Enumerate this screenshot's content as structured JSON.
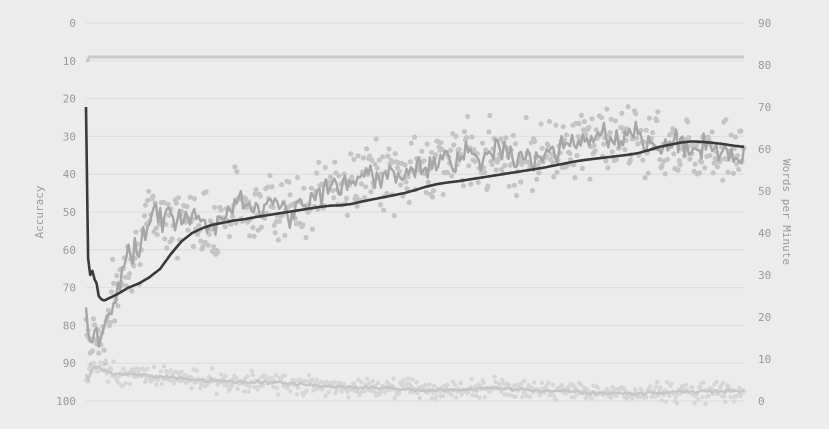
{
  "chart_data": {
    "type": "scatter",
    "title": "",
    "left_axis": {
      "label": "Accuracy",
      "range": [
        0,
        100
      ],
      "inverted": true,
      "ticks": [
        "0",
        "10",
        "20",
        "30",
        "40",
        "50",
        "60",
        "70",
        "80",
        "90",
        "100"
      ]
    },
    "right_axis": {
      "label": "Words per Minute",
      "range": [
        0,
        90
      ],
      "ticks": [
        "90",
        "80",
        "70",
        "60",
        "50",
        "40",
        "30",
        "20",
        "10",
        "0"
      ]
    },
    "grid": true,
    "legend": "none",
    "x_range": [
      0,
      620
    ],
    "series": [
      {
        "axis": "right",
        "style": "scatter+line",
        "color": "#b8b8b8",
        "control_points": [
          [
            0,
            22
          ],
          [
            1,
            18
          ],
          [
            3,
            15
          ],
          [
            5,
            12
          ],
          [
            8,
            18
          ],
          [
            12,
            15
          ],
          [
            18,
            16
          ],
          [
            25,
            24
          ],
          [
            32,
            28
          ],
          [
            38,
            34
          ],
          [
            45,
            36
          ],
          [
            52,
            37
          ],
          [
            58,
            42
          ],
          [
            64,
            45
          ],
          [
            70,
            44
          ],
          [
            78,
            45
          ],
          [
            85,
            42
          ],
          [
            95,
            44
          ],
          [
            105,
            43
          ],
          [
            115,
            41
          ],
          [
            125,
            43
          ],
          [
            135,
            45
          ],
          [
            145,
            48
          ],
          [
            155,
            47
          ],
          [
            165,
            44
          ],
          [
            175,
            48
          ],
          [
            185,
            46
          ],
          [
            195,
            45
          ],
          [
            205,
            47
          ],
          [
            215,
            48
          ],
          [
            225,
            50
          ],
          [
            235,
            52
          ],
          [
            245,
            52
          ],
          [
            255,
            51
          ],
          [
            265,
            55
          ],
          [
            275,
            53
          ],
          [
            285,
            54
          ],
          [
            295,
            53
          ],
          [
            305,
            55
          ],
          [
            315,
            55
          ],
          [
            325,
            57
          ],
          [
            335,
            58
          ],
          [
            345,
            57
          ],
          [
            355,
            58
          ],
          [
            365,
            60
          ],
          [
            375,
            58
          ],
          [
            385,
            60
          ],
          [
            395,
            59
          ],
          [
            405,
            57
          ],
          [
            415,
            59
          ],
          [
            425,
            58
          ],
          [
            435,
            60
          ],
          [
            445,
            60
          ],
          [
            455,
            61
          ],
          [
            465,
            62
          ],
          [
            475,
            61
          ],
          [
            485,
            64
          ],
          [
            495,
            62
          ],
          [
            505,
            61
          ],
          [
            515,
            63
          ],
          [
            525,
            61
          ],
          [
            535,
            62
          ],
          [
            545,
            60
          ],
          [
            555,
            62
          ],
          [
            565,
            60
          ],
          [
            575,
            60
          ],
          [
            585,
            62
          ],
          [
            595,
            59
          ],
          [
            605,
            60
          ],
          [
            615,
            58
          ],
          [
            620,
            58
          ]
        ]
      },
      {
        "axis": "right",
        "style": "line",
        "color": "#3a3a3a",
        "control_points": [
          [
            0,
            70
          ],
          [
            1,
            50
          ],
          [
            2,
            34
          ],
          [
            3,
            32
          ],
          [
            4,
            30
          ],
          [
            6,
            31
          ],
          [
            8,
            29
          ],
          [
            10,
            28
          ],
          [
            12,
            25
          ],
          [
            15,
            24
          ],
          [
            18,
            24
          ],
          [
            22,
            24.5
          ],
          [
            30,
            25.5
          ],
          [
            40,
            27
          ],
          [
            50,
            28
          ],
          [
            60,
            29.5
          ],
          [
            70,
            31.5
          ],
          [
            80,
            35
          ],
          [
            90,
            38
          ],
          [
            100,
            40
          ],
          [
            110,
            41.2
          ],
          [
            120,
            42
          ],
          [
            130,
            42.5
          ],
          [
            140,
            43
          ],
          [
            150,
            43.3
          ],
          [
            160,
            43.8
          ],
          [
            170,
            44.2
          ],
          [
            180,
            44.6
          ],
          [
            190,
            45
          ],
          [
            200,
            45.4
          ],
          [
            210,
            45.8
          ],
          [
            220,
            46.2
          ],
          [
            230,
            46.5
          ],
          [
            240,
            46.6
          ],
          [
            250,
            46.9
          ],
          [
            260,
            47.5
          ],
          [
            270,
            48
          ],
          [
            280,
            48.5
          ],
          [
            290,
            49
          ],
          [
            300,
            49.5
          ],
          [
            310,
            50.2
          ],
          [
            320,
            51
          ],
          [
            330,
            51.6
          ],
          [
            340,
            52
          ],
          [
            350,
            52.3
          ],
          [
            360,
            52.7
          ],
          [
            370,
            53.1
          ],
          [
            380,
            53.5
          ],
          [
            390,
            53.9
          ],
          [
            400,
            54.3
          ],
          [
            410,
            54.7
          ],
          [
            420,
            55.1
          ],
          [
            430,
            55.5
          ],
          [
            440,
            56
          ],
          [
            450,
            56.5
          ],
          [
            460,
            57
          ],
          [
            470,
            57.4
          ],
          [
            480,
            57.7
          ],
          [
            490,
            58
          ],
          [
            500,
            58.3
          ],
          [
            510,
            58.6
          ],
          [
            520,
            59
          ],
          [
            530,
            59.7
          ],
          [
            540,
            60.5
          ],
          [
            550,
            61
          ],
          [
            560,
            61.5
          ],
          [
            570,
            61.8
          ],
          [
            580,
            61.7
          ],
          [
            590,
            61.5
          ],
          [
            600,
            61.2
          ],
          [
            610,
            60.8
          ],
          [
            620,
            60.5
          ]
        ]
      },
      {
        "axis": "left",
        "style": "scatter+line",
        "color": "#c6c6c6",
        "control_points": [
          [
            0,
            93
          ],
          [
            2,
            95
          ],
          [
            5,
            92
          ],
          [
            8,
            91
          ],
          [
            12,
            91
          ],
          [
            18,
            92
          ],
          [
            25,
            93
          ],
          [
            35,
            93
          ],
          [
            45,
            93
          ],
          [
            55,
            93
          ],
          [
            65,
            93.5
          ],
          [
            75,
            93.5
          ],
          [
            85,
            94
          ],
          [
            100,
            94.5
          ],
          [
            120,
            94.5
          ],
          [
            140,
            95
          ],
          [
            160,
            95
          ],
          [
            180,
            95.2
          ],
          [
            200,
            95.5
          ],
          [
            220,
            96
          ],
          [
            240,
            96.2
          ],
          [
            260,
            96.5
          ],
          [
            280,
            96.6
          ],
          [
            300,
            97
          ],
          [
            320,
            97.2
          ],
          [
            340,
            97.2
          ],
          [
            360,
            97
          ],
          [
            380,
            96.5
          ],
          [
            400,
            96.8
          ],
          [
            420,
            97.2
          ],
          [
            440,
            97.4
          ],
          [
            460,
            97.5
          ],
          [
            480,
            97.8
          ],
          [
            500,
            98
          ],
          [
            520,
            98
          ],
          [
            540,
            97.8
          ],
          [
            560,
            97.6
          ],
          [
            580,
            97.5
          ],
          [
            600,
            97.4
          ],
          [
            620,
            97.4
          ]
        ]
      },
      {
        "axis": "left",
        "style": "step",
        "color": "#c8c8c8",
        "steps": [
          [
            0,
            10
          ],
          [
            2,
            10
          ],
          [
            3,
            9
          ],
          [
            620,
            9
          ]
        ]
      }
    ]
  }
}
